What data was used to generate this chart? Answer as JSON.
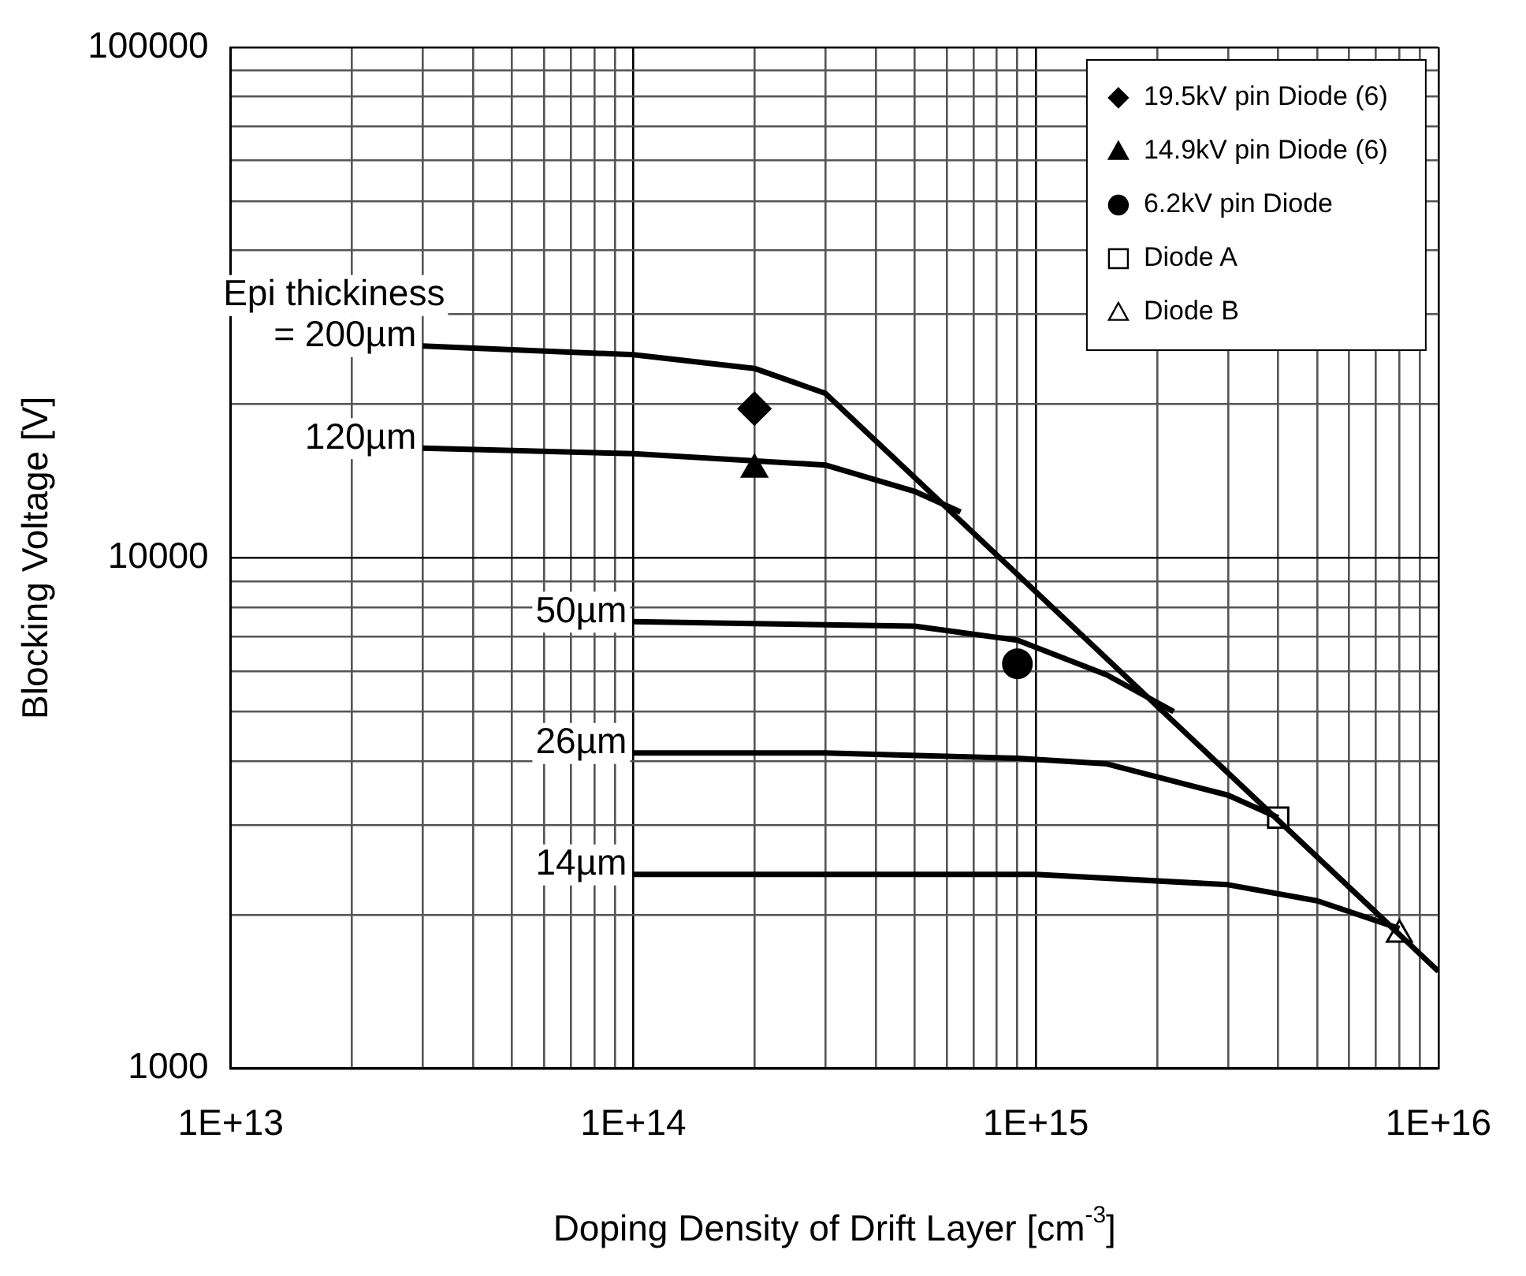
{
  "chart_data": {
    "type": "line",
    "xlabel": "Doping Density of Drift Layer [cm$^{-3}$]",
    "ylabel": "Blocking Voltage [V]",
    "log": "xy",
    "grid": true,
    "legend": "top right",
    "line_style": "solid",
    "xlim": [
      10000000000000.0,
      1e+16
    ],
    "ylim": [
      1000,
      100000
    ],
    "xticks": [
      {
        "value": 10000000000000.0,
        "label": "1E+13"
      },
      {
        "value": 20000000000000.0,
        "label": null
      },
      {
        "value": 30000000000000.0,
        "label": null
      },
      {
        "value": 40000000000000.0,
        "label": null
      },
      {
        "value": 50000000000000.0,
        "label": null
      },
      {
        "value": 60000000000000.0,
        "label": null
      },
      {
        "value": 70000000000000.0,
        "label": null
      },
      {
        "value": 80000000000000.0,
        "label": null
      },
      {
        "value": 90000000000000.0,
        "label": null
      },
      {
        "value": 100000000000000.0,
        "label": "1E+14"
      },
      {
        "value": 200000000000000.0,
        "label": null
      },
      {
        "value": 300000000000000.0,
        "label": null
      },
      {
        "value": 400000000000000.0,
        "label": null
      },
      {
        "value": 500000000000000.0,
        "label": null
      },
      {
        "value": 600000000000000.0,
        "label": null
      },
      {
        "value": 700000000000000.0,
        "label": null
      },
      {
        "value": 800000000000000.0,
        "label": null
      },
      {
        "value": 900000000000000.0,
        "label": null
      },
      {
        "value": 1000000000000000.0,
        "label": "1E+15"
      },
      {
        "value": 2000000000000000.0,
        "label": null
      },
      {
        "value": 3000000000000000.0,
        "label": null
      },
      {
        "value": 4000000000000000.0,
        "label": null
      },
      {
        "value": 5000000000000000.0,
        "label": null
      },
      {
        "value": 6000000000000000.0,
        "label": null
      },
      {
        "value": 7000000000000000.0,
        "label": null
      },
      {
        "value": 8000000000000000.0,
        "label": null
      },
      {
        "value": 9000000000000000.0,
        "label": null
      },
      {
        "value": 1e+16,
        "label": "1E+16"
      }
    ],
    "yticks": [
      1000,
      {
        "value": 2000,
        "label": null
      },
      {
        "value": 3000,
        "label": null
      },
      {
        "value": 4000,
        "label": null
      },
      {
        "value": 5000,
        "label": null
      },
      {
        "value": 6000,
        "label": null
      },
      {
        "value": 7000,
        "label": null
      },
      {
        "value": 8000,
        "label": null
      },
      {
        "value": 9000,
        "label": null
      },
      10000,
      {
        "value": 20000,
        "label": null
      },
      {
        "value": 30000,
        "label": null
      },
      {
        "value": 40000,
        "label": null
      },
      {
        "value": 50000,
        "label": null
      },
      {
        "value": 60000,
        "label": null
      },
      {
        "value": 70000,
        "label": null
      },
      {
        "value": 80000,
        "label": null
      },
      {
        "value": 90000,
        "label": null
      },
      100000
    ],
    "series": [
      {
        "type": "line",
        "name": "= 200µm",
        "marker": "none",
        "color": "#000000",
        "x": [
          30000000000000.0,
          100000000000000.0,
          200000000000000.0,
          300000000000000.0,
          1e+16
        ],
        "values": [
          26000,
          25000,
          23500,
          21000,
          1550
        ]
      },
      {
        "type": "line",
        "name": "120µm",
        "marker": "none",
        "color": "#000000",
        "x": [
          30000000000000.0,
          100000000000000.0,
          300000000000000.0,
          500000000000000.0,
          650000000000000.0
        ],
        "values": [
          16400,
          16000,
          15200,
          13500,
          12300
        ]
      },
      {
        "type": "line",
        "name": "50µm",
        "marker": "none",
        "color": "#000000",
        "x": [
          100000000000000.0,
          500000000000000.0,
          900000000000000.0,
          1500000000000000.0,
          2200000000000000.0
        ],
        "values": [
          7500,
          7350,
          6900,
          5900,
          5000
        ]
      },
      {
        "type": "line",
        "name": "26µm",
        "marker": "none",
        "color": "#000000",
        "x": [
          100000000000000.0,
          300000000000000.0,
          900000000000000.0,
          1500000000000000.0,
          3000000000000000.0,
          4000000000000000.0
        ],
        "values": [
          4150,
          4150,
          4050,
          3950,
          3430,
          3100
        ]
      },
      {
        "type": "line",
        "name": "14µm",
        "marker": "none",
        "color": "#000000",
        "x": [
          100000000000000.0,
          1000000000000000.0,
          3000000000000000.0,
          5000000000000000.0,
          8000000000000000.0
        ],
        "values": [
          2400,
          2400,
          2290,
          2130,
          1880
        ]
      },
      {
        "type": "scatter",
        "name": "19.5kV pin Diode (6)",
        "marker": "diamond",
        "color": "#000000",
        "x": [
          200000000000000.0
        ],
        "values": [
          19600
        ]
      },
      {
        "type": "scatter",
        "name": "14.9kV pin Diode (6)",
        "marker": "triangle",
        "color": "#000000",
        "x": [
          200000000000000.0
        ],
        "values": [
          14900
        ]
      },
      {
        "type": "scatter",
        "name": "6.2kV pin Diode",
        "marker": "circle",
        "color": "#000000",
        "x": [
          900000000000000.0
        ],
        "values": [
          6200
        ]
      },
      {
        "type": "scatter",
        "name": "Diode A",
        "marker": "square",
        "color": "#ffffff",
        "x": [
          4000000000000000.0
        ],
        "values": [
          3100
        ]
      },
      {
        "type": "scatter",
        "name": "Diode B",
        "marker": "triangle",
        "color": "#ffffff",
        "x": [
          8000000000000000.0
        ],
        "values": [
          1830
        ]
      }
    ],
    "annotations": [
      "Epi thickiness"
    ]
  }
}
